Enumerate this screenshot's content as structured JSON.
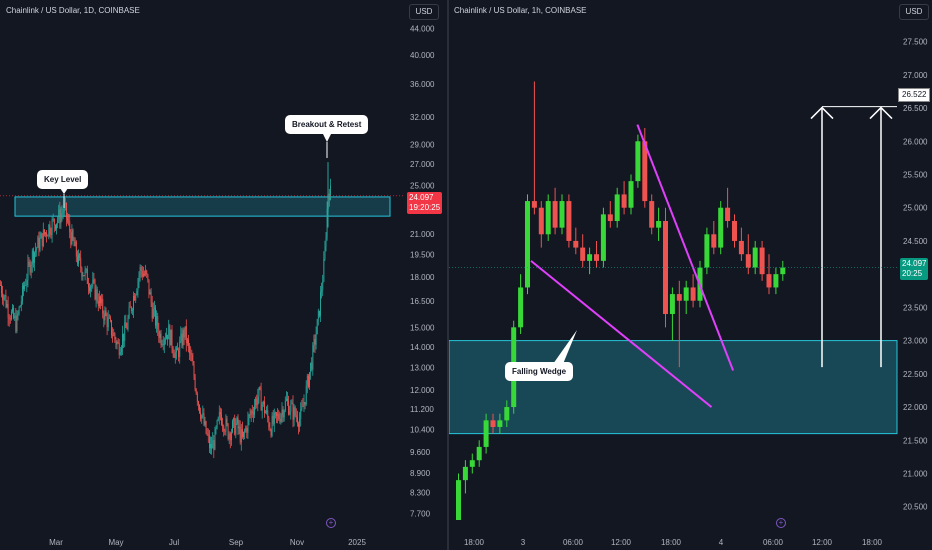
{
  "colors": {
    "up": "#26a69a",
    "up_bright": "#39d839",
    "down": "#ef5350",
    "zone": "#26c6da",
    "wedge": "#e040fb"
  },
  "left_chart": {
    "title": "Chainlink / US Dollar, 1D, COINBASE",
    "currency": "USD",
    "annotations": {
      "key_level": "Key Level",
      "breakout": "Breakout & Retest"
    },
    "last_price": "24.097",
    "countdown": "19:20:25"
  },
  "right_chart": {
    "title": "Chainlink / US Dollar, 1h, COINBASE",
    "currency": "USD",
    "annotations": {
      "pattern": "Falling Wedge"
    },
    "last_price": "24.097",
    "countdown": "20:25",
    "target_label": "26.522"
  },
  "chart_data": [
    {
      "type": "candlestick",
      "title": "Chainlink / US Dollar, 1D, COINBASE",
      "ylim": [
        7.2,
        45.0
      ],
      "y_scale": "log",
      "y_ticks": [
        "44.000",
        "40.000",
        "36.000",
        "32.000",
        "29.000",
        "27.000",
        "25.000",
        "23.000",
        "21.000",
        "19.500",
        "18.000",
        "16.500",
        "15.000",
        "14.000",
        "13.000",
        "12.000",
        "11.200",
        "10.400",
        "9.600",
        "8.900",
        "8.300",
        "7.700"
      ],
      "x_ticks": [
        "Mar",
        "May",
        "Jul",
        "Sep",
        "Nov",
        "2025"
      ],
      "key_level_zone": [
        22.4,
        24.0
      ],
      "close_path": [
        [
          0,
          17.5
        ],
        [
          8,
          16.0
        ],
        [
          16,
          15.2
        ],
        [
          24,
          17.5
        ],
        [
          32,
          19.5
        ],
        [
          40,
          20.5
        ],
        [
          48,
          21.5
        ],
        [
          55,
          22.0
        ],
        [
          60,
          22.5
        ],
        [
          64,
          23.0
        ],
        [
          70,
          21.0
        ],
        [
          78,
          19.0
        ],
        [
          86,
          18.0
        ],
        [
          94,
          17.2
        ],
        [
          102,
          16.0
        ],
        [
          110,
          15.0
        ],
        [
          118,
          14.0
        ],
        [
          126,
          15.0
        ],
        [
          134,
          17.0
        ],
        [
          140,
          18.5
        ],
        [
          146,
          18.0
        ],
        [
          152,
          16.0
        ],
        [
          160,
          14.5
        ],
        [
          168,
          14.8
        ],
        [
          176,
          13.5
        ],
        [
          184,
          14.8
        ],
        [
          192,
          13.0
        ],
        [
          198,
          11.5
        ],
        [
          204,
          10.5
        ],
        [
          210,
          9.7
        ],
        [
          214,
          10.0
        ],
        [
          220,
          11.0
        ],
        [
          228,
          10.3
        ],
        [
          236,
          10.6
        ],
        [
          242,
          10.0
        ],
        [
          250,
          11.0
        ],
        [
          258,
          11.8
        ],
        [
          264,
          11.2
        ],
        [
          270,
          10.5
        ],
        [
          278,
          10.9
        ],
        [
          286,
          11.5
        ],
        [
          294,
          11.0
        ],
        [
          300,
          10.8
        ],
        [
          306,
          12.0
        ],
        [
          312,
          13.5
        ],
        [
          318,
          15.5
        ],
        [
          324,
          19.0
        ],
        [
          328,
          24.8
        ],
        [
          331,
          24.1
        ]
      ],
      "last_price": 24.097
    },
    {
      "type": "candlestick",
      "title": "Chainlink / US Dollar, 1h, COINBASE",
      "ylim": [
        20.3,
        27.75
      ],
      "y_ticks": [
        "27.500",
        "27.000",
        "26.500",
        "26.000",
        "25.500",
        "25.000",
        "24.500",
        "24.000",
        "23.500",
        "23.000",
        "22.500",
        "22.000",
        "21.500",
        "21.000",
        "20.500"
      ],
      "x_ticks": [
        "18:00",
        "3",
        "06:00",
        "12:00",
        "18:00",
        "4",
        "06:00",
        "12:00",
        "18:00"
      ],
      "support_zone": [
        21.6,
        23.0
      ],
      "target": 26.522,
      "candles": [
        {
          "o": 20.3,
          "h": 21.0,
          "l": 20.3,
          "c": 20.9
        },
        {
          "o": 20.9,
          "h": 21.2,
          "l": 20.7,
          "c": 21.1
        },
        {
          "o": 21.1,
          "h": 21.3,
          "l": 21.0,
          "c": 21.2
        },
        {
          "o": 21.2,
          "h": 21.5,
          "l": 21.1,
          "c": 21.4
        },
        {
          "o": 21.4,
          "h": 21.9,
          "l": 21.3,
          "c": 21.8
        },
        {
          "o": 21.8,
          "h": 21.9,
          "l": 21.6,
          "c": 21.7
        },
        {
          "o": 21.7,
          "h": 21.9,
          "l": 21.6,
          "c": 21.8
        },
        {
          "o": 21.8,
          "h": 22.1,
          "l": 21.7,
          "c": 22.0
        },
        {
          "o": 22.0,
          "h": 23.3,
          "l": 21.9,
          "c": 23.2
        },
        {
          "o": 23.2,
          "h": 24.0,
          "l": 23.1,
          "c": 23.8
        },
        {
          "o": 23.8,
          "h": 25.2,
          "l": 23.7,
          "c": 25.1
        },
        {
          "o": 25.1,
          "h": 26.9,
          "l": 24.9,
          "c": 25.0
        },
        {
          "o": 25.0,
          "h": 25.1,
          "l": 24.4,
          "c": 24.6
        },
        {
          "o": 24.6,
          "h": 25.2,
          "l": 24.5,
          "c": 25.1
        },
        {
          "o": 25.1,
          "h": 25.3,
          "l": 24.6,
          "c": 24.7
        },
        {
          "o": 24.7,
          "h": 25.2,
          "l": 24.6,
          "c": 25.1
        },
        {
          "o": 25.1,
          "h": 25.2,
          "l": 24.4,
          "c": 24.5
        },
        {
          "o": 24.5,
          "h": 24.7,
          "l": 24.3,
          "c": 24.4
        },
        {
          "o": 24.4,
          "h": 24.6,
          "l": 24.1,
          "c": 24.2
        },
        {
          "o": 24.2,
          "h": 24.4,
          "l": 24.0,
          "c": 24.3
        },
        {
          "o": 24.3,
          "h": 24.5,
          "l": 24.1,
          "c": 24.2
        },
        {
          "o": 24.2,
          "h": 25.0,
          "l": 24.1,
          "c": 24.9
        },
        {
          "o": 24.9,
          "h": 25.1,
          "l": 24.7,
          "c": 24.8
        },
        {
          "o": 24.8,
          "h": 25.3,
          "l": 24.7,
          "c": 25.2
        },
        {
          "o": 25.2,
          "h": 25.4,
          "l": 24.9,
          "c": 25.0
        },
        {
          "o": 25.0,
          "h": 25.5,
          "l": 24.9,
          "c": 25.4
        },
        {
          "o": 25.4,
          "h": 26.1,
          "l": 25.3,
          "c": 26.0
        },
        {
          "o": 26.0,
          "h": 26.2,
          "l": 25.0,
          "c": 25.1
        },
        {
          "o": 25.1,
          "h": 25.2,
          "l": 24.6,
          "c": 24.7
        },
        {
          "o": 24.7,
          "h": 25.0,
          "l": 24.5,
          "c": 24.8
        },
        {
          "o": 24.8,
          "h": 25.0,
          "l": 23.2,
          "c": 23.4
        },
        {
          "o": 23.4,
          "h": 23.8,
          "l": 23.0,
          "c": 23.7
        },
        {
          "o": 23.7,
          "h": 23.9,
          "l": 22.6,
          "c": 23.6
        },
        {
          "o": 23.6,
          "h": 23.9,
          "l": 23.4,
          "c": 23.8
        },
        {
          "o": 23.8,
          "h": 24.0,
          "l": 23.5,
          "c": 23.6
        },
        {
          "o": 23.6,
          "h": 24.2,
          "l": 23.5,
          "c": 24.1
        },
        {
          "o": 24.1,
          "h": 24.7,
          "l": 24.0,
          "c": 24.6
        },
        {
          "o": 24.6,
          "h": 24.8,
          "l": 24.3,
          "c": 24.4
        },
        {
          "o": 24.4,
          "h": 25.1,
          "l": 24.3,
          "c": 25.0
        },
        {
          "o": 25.0,
          "h": 25.3,
          "l": 24.7,
          "c": 24.8
        },
        {
          "o": 24.8,
          "h": 24.9,
          "l": 24.4,
          "c": 24.5
        },
        {
          "o": 24.5,
          "h": 24.7,
          "l": 24.2,
          "c": 24.3
        },
        {
          "o": 24.3,
          "h": 24.6,
          "l": 24.0,
          "c": 24.1
        },
        {
          "o": 24.1,
          "h": 24.5,
          "l": 24.0,
          "c": 24.4
        },
        {
          "o": 24.4,
          "h": 24.5,
          "l": 23.9,
          "c": 24.0
        },
        {
          "o": 24.0,
          "h": 24.3,
          "l": 23.7,
          "c": 23.8
        },
        {
          "o": 23.8,
          "h": 24.1,
          "l": 23.7,
          "c": 24.0
        },
        {
          "o": 24.0,
          "h": 24.2,
          "l": 23.9,
          "c": 24.1
        }
      ],
      "wedge_lines": [
        {
          "from": [
            "idx 10",
            24.2
          ],
          "to": [
            "idx 35",
            22.2
          ]
        },
        {
          "from": [
            "idx 23",
            26.3
          ],
          "to": [
            "idx 37",
            22.6
          ]
        }
      ],
      "last_price": 24.097
    }
  ]
}
